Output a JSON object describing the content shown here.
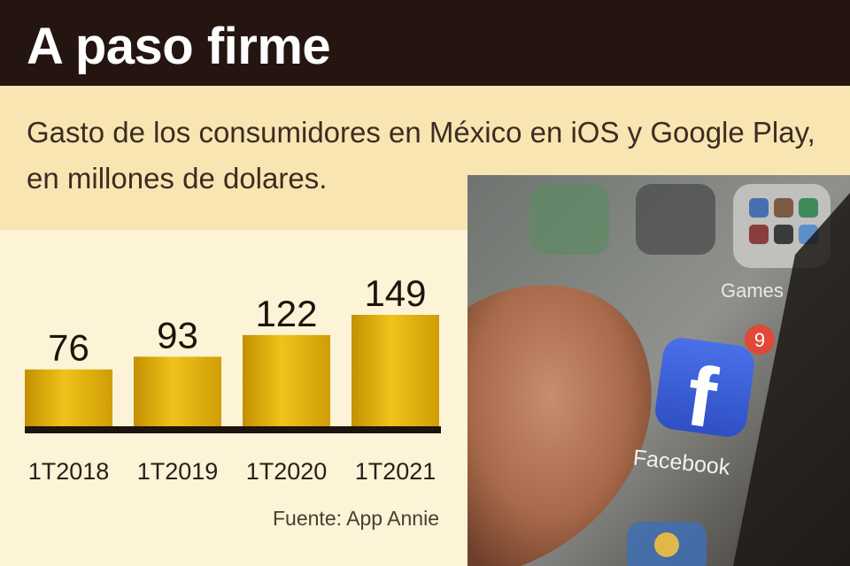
{
  "header": {
    "title": "A paso firme"
  },
  "subtitle": {
    "line1": "Gasto de los consumidores en México en iOS y Google Play,",
    "line2": "en millones de dolares."
  },
  "source": "Fuente: App Annie",
  "photo": {
    "app_label": "Facebook",
    "folder_label": "Games",
    "badge_count": "9"
  },
  "colors": {
    "header_bg": "#241510",
    "subtitle_bg": "#f8e5b2",
    "panel_bg": "#fdf3d6",
    "bar": "#e6b40c",
    "baseline": "#1e140e",
    "facebook": "#3b5fd8",
    "badge": "#e0483a"
  },
  "chart_data": {
    "type": "bar",
    "categories": [
      "1T2018",
      "1T2019",
      "1T2020",
      "1T2021"
    ],
    "values": [
      76,
      93,
      122,
      149
    ],
    "data_labels": [
      "76",
      "93",
      "122",
      "149"
    ],
    "ylim": [
      0,
      160
    ],
    "grid": false
  }
}
